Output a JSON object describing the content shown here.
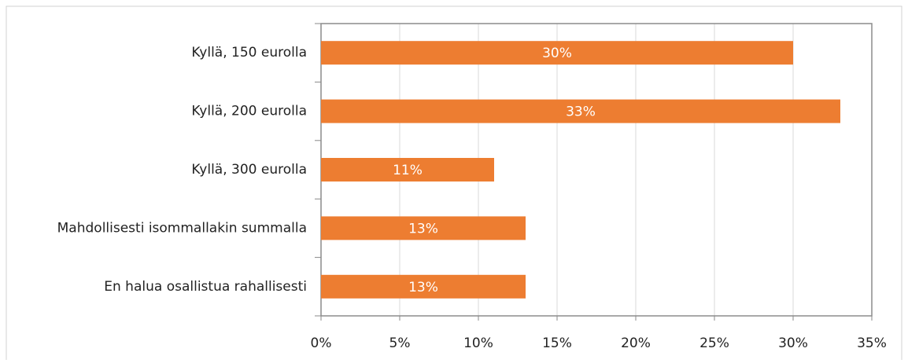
{
  "chart_data": {
    "type": "bar",
    "orientation": "horizontal",
    "categories": [
      "Kyllä, 150 eurolla",
      "Kyllä, 200 eurolla",
      "Kyllä, 300 eurolla",
      "Mahdollisesti isommallakin summalla",
      "En halua osallistua rahallisesti"
    ],
    "values": [
      30,
      33,
      11,
      13,
      13
    ],
    "value_labels": [
      "30%",
      "33%",
      "11%",
      "13%",
      "13%"
    ],
    "color": "#ed7d31",
    "xlim": [
      0,
      35
    ],
    "xticks": [
      {
        "value": 0,
        "label": "0%"
      },
      {
        "value": 5,
        "label": "5%"
      },
      {
        "value": 10,
        "label": "10%"
      },
      {
        "value": 15,
        "label": "15%"
      },
      {
        "value": 20,
        "label": "20%"
      },
      {
        "value": 25,
        "label": "25%"
      },
      {
        "value": 30,
        "label": "30%"
      },
      {
        "value": 35,
        "label": "35%"
      }
    ],
    "grid": true
  }
}
